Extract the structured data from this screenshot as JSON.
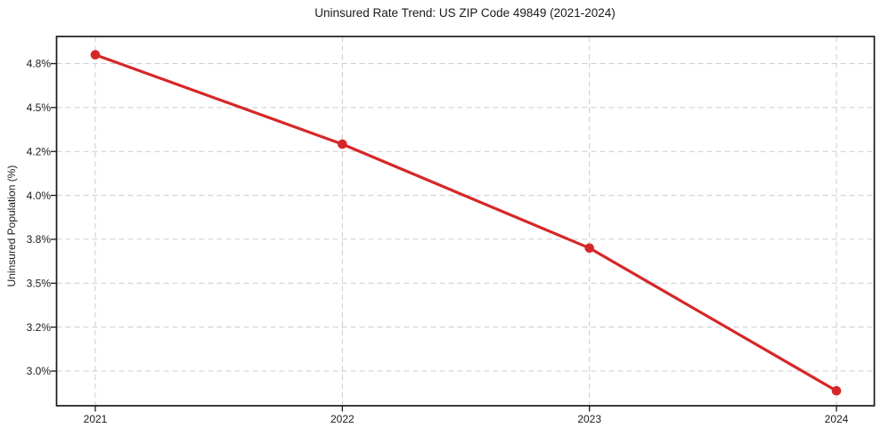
{
  "chart_data": {
    "type": "line",
    "title": "Uninsured Rate Trend: US ZIP Code 49849 (2021-2024)",
    "xlabel": "",
    "ylabel": "Uninsured Population (%)",
    "categories": [
      "2021",
      "2022",
      "2023",
      "2024"
    ],
    "values": [
      4.86,
      4.25,
      3.74,
      2.91
    ],
    "series_name": "uninsured-rate",
    "ytick_labels": [
      "4.8%",
      "4.5%",
      "4.2%",
      "4.0%",
      "3.8%",
      "3.5%",
      "3.2%",
      "3.0%"
    ],
    "ytick_values": [
      4.8,
      4.5,
      4.2,
      4.0,
      3.8,
      3.5,
      3.2,
      3.0
    ],
    "ylim_visual": [
      2.85,
      4.95
    ],
    "grid": true,
    "grid_style": "dashed",
    "legend": "none",
    "line_color": "#d62728",
    "marker": "circle",
    "background": "#ffffff",
    "axis_color": "#1a1a1a",
    "grid_color": "#cccccc",
    "tick_label_color": "#1a1a1a"
  }
}
